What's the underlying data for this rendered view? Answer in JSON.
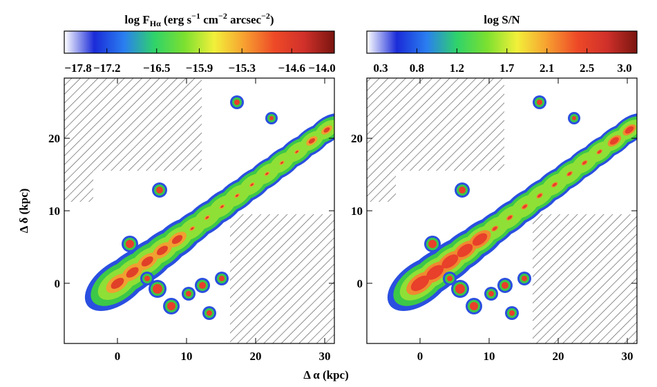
{
  "chart_data": [
    {
      "type": "map",
      "colorbar": {
        "title_parts": [
          {
            "text": "log F"
          },
          {
            "text": "Hα",
            "sub": true
          },
          {
            "text": " (erg s"
          },
          {
            "text": "−1",
            "sup": true
          },
          {
            "text": " cm"
          },
          {
            "text": "−2",
            "sup": true
          },
          {
            "text": " arcsec"
          },
          {
            "text": "−2",
            "sup": true
          },
          {
            "text": ")"
          }
        ],
        "lim": [
          -17.8,
          -14.0
        ],
        "ticks": [
          {
            "value": -17.8,
            "label": "−17.8"
          },
          {
            "value": -17.2,
            "label": "−17.2"
          },
          {
            "value": -16.5,
            "label": "−16.5"
          },
          {
            "value": -15.9,
            "label": "−15.9"
          },
          {
            "value": -15.3,
            "label": "−15.3"
          },
          {
            "value": -14.6,
            "label": "−14.6"
          },
          {
            "value": -14.0,
            "label": "−14.0"
          }
        ],
        "colormap": [
          "#ffffff",
          "#1a2bd8",
          "#2a7ff0",
          "#2fd36a",
          "#7be030",
          "#f2f03a",
          "#f7a030",
          "#ee4a28",
          "#d0302a",
          "#7a1510"
        ]
      },
      "ylabel": "Δ δ (kpc)",
      "xlim": [
        -7.7,
        31.4
      ],
      "xticks": [
        0,
        10,
        20,
        30
      ],
      "ylim": [
        -8.3,
        28.3
      ],
      "yticks": [
        0,
        10,
        20
      ]
    },
    {
      "type": "map",
      "colorbar": {
        "title_parts": [
          {
            "text": "log S/N"
          }
        ],
        "lim": [
          0.3,
          3.0
        ],
        "ticks": [
          0.3,
          0.8,
          1.2,
          1.7,
          2.1,
          2.5,
          {
            "value": 3.0,
            "label": "3.0"
          }
        ],
        "colormap": [
          "#ffffff",
          "#1a2bd8",
          "#2a7ff0",
          "#2fd36a",
          "#7be030",
          "#f2f03a",
          "#f7a030",
          "#ee4a28",
          "#d0302a",
          "#7a1510"
        ]
      },
      "xlim": [
        -7.7,
        31.4
      ],
      "xticks": [
        0,
        10,
        20,
        30
      ],
      "ylim": [
        -8.3,
        28.3
      ],
      "yticks": [
        0,
        10,
        20
      ]
    }
  ],
  "xlabel": "Δ α (kpc)"
}
